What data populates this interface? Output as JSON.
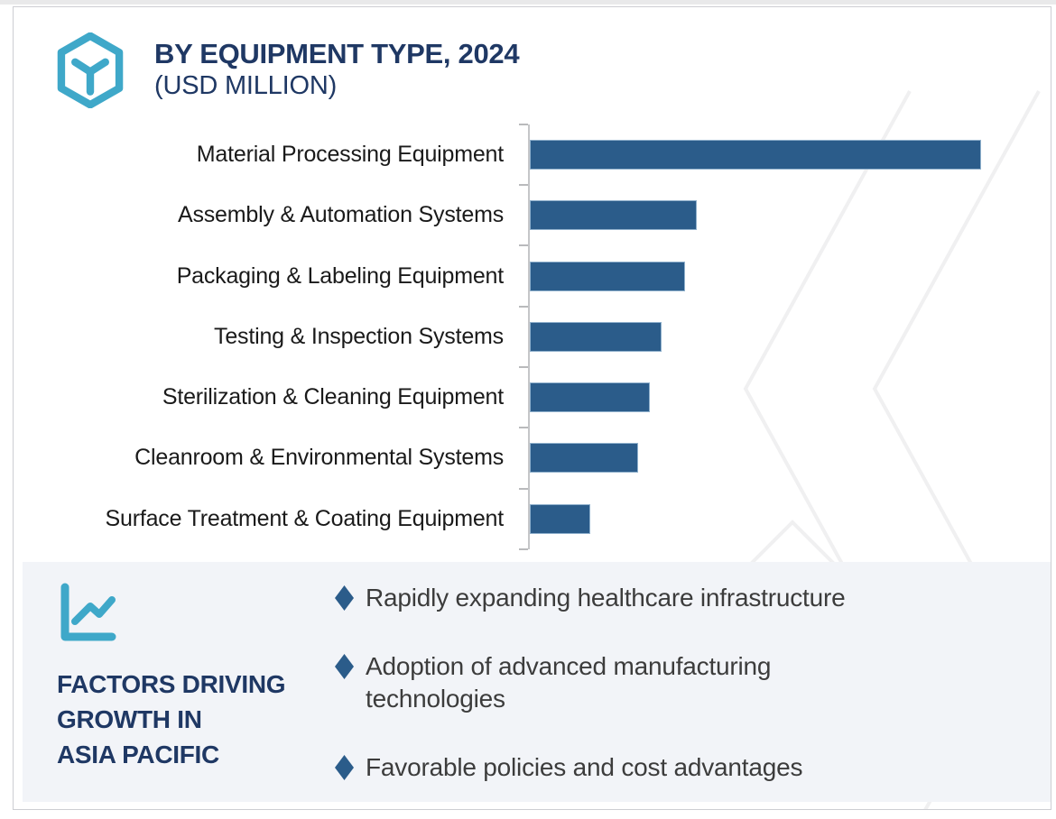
{
  "header": {
    "title": "BY EQUIPMENT TYPE, 2024",
    "subtitle": "(USD MILLION)",
    "icon": "hexagon-cube-icon"
  },
  "chart_data": {
    "type": "bar",
    "orientation": "horizontal",
    "title": "BY EQUIPMENT TYPE, 2024",
    "subtitle": "(USD MILLION)",
    "units": "USD Million",
    "categories": [
      "Material Processing Equipment",
      "Assembly & Automation Systems",
      "Packaging & Labeling Equipment",
      "Testing & Inspection Systems",
      "Sterilization & Cleaning Equipment",
      "Cleanroom & Environmental Systems",
      "Surface Treatment & Coating Equipment"
    ],
    "values": [
      500,
      185,
      172,
      146,
      133,
      120,
      67
    ],
    "value_scale": "relative estimates from bar lengths; no numeric axis labels shown in image",
    "xlim": [
      0,
      570
    ],
    "grid": false,
    "legend": false,
    "value_labels": false,
    "bar_color": "#2b5c8a"
  },
  "factors_panel": {
    "icon": "line-chart-icon",
    "heading_lines": [
      "FACTORS DRIVING",
      "GROWTH IN",
      "ASIA PACIFIC"
    ],
    "bullets": [
      {
        "lines": [
          "Rapidly expanding healthcare infrastructure",
          ""
        ]
      },
      {
        "lines": [
          "Adoption of advanced manufacturing",
          "technologies"
        ]
      },
      {
        "lines": [
          "Favorable policies and cost advantages",
          ""
        ]
      }
    ]
  },
  "colors": {
    "navy_text": "#1f3864",
    "teal_icon": "#3fa8c9",
    "bar_fill": "#2b5c8a",
    "bar_border": "#8fb0cc",
    "bullet_diamond": "#2b5c8a",
    "panel_background": "#f2f4f8",
    "axis_line": "#c5c6c8",
    "watermark_lines": "#f0f0f1",
    "frame_border": "#cdced3",
    "top_strip": "#e9e9ea",
    "body_text": "#3c3c3c"
  }
}
